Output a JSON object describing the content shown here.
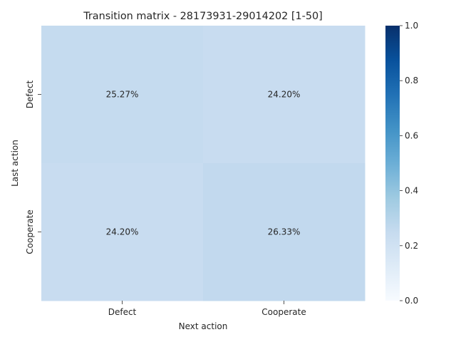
{
  "chart_data": {
    "type": "heatmap",
    "title": "Transition matrix - 28173931-29014202 [1-50]",
    "xlabel": "Next action",
    "ylabel": "Last action",
    "x_categories": [
      "Defect",
      "Cooperate"
    ],
    "y_categories": [
      "Defect",
      "Cooperate"
    ],
    "values": [
      [
        0.2527,
        0.242
      ],
      [
        0.242,
        0.2633
      ]
    ],
    "annotations": [
      [
        "25.27%",
        "24.20%"
      ],
      [
        "24.20%",
        "26.33%"
      ]
    ],
    "colormap": "Blues",
    "colorbar": {
      "range": [
        0,
        1
      ],
      "ticks": [
        0.0,
        0.2,
        0.4,
        0.6,
        0.8,
        1.0
      ],
      "tick_labels": [
        "0.0",
        "0.2",
        "0.4",
        "0.6",
        "0.8",
        "1.0"
      ]
    }
  }
}
